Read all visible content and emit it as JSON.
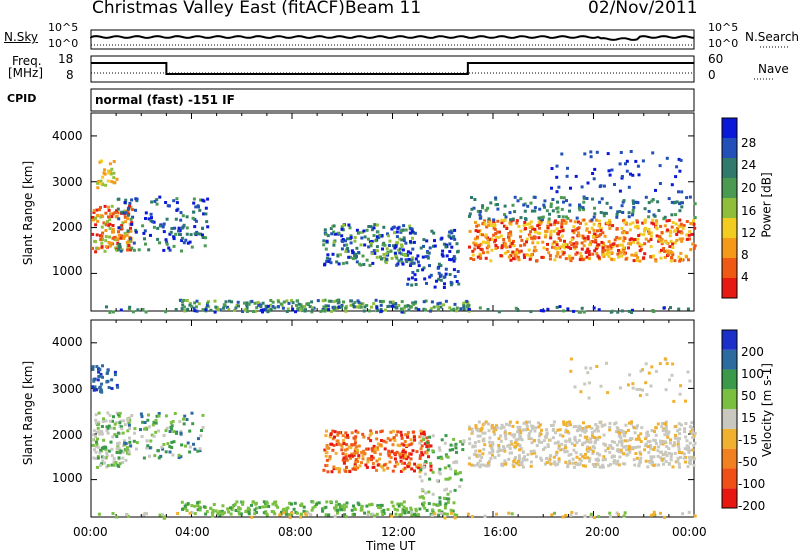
{
  "header": {
    "station": "Christmas Valley East (fitACF)",
    "beam": "Beam 11",
    "date": "02/Nov/2011"
  },
  "top_panels": {
    "noise_left_label": "N.Sky",
    "noise_right_label": "N.Search",
    "noise_ticks": [
      "10^5",
      "10^0"
    ],
    "freq_label_line1": "Freq.",
    "freq_label_line2": "[MHz]",
    "freq_ticks": [
      "18",
      "8"
    ],
    "nave_label": "Nave",
    "nave_ticks": [
      "60",
      "0"
    ],
    "cpid_label": "CPID",
    "cpid_value": "normal (fast) -151 IF"
  },
  "chart_data": [
    {
      "type": "heatmap",
      "name": "power",
      "ylabel": "Slant Range [km]",
      "xlabel": "",
      "y_ticks": [
        "4000",
        "3000",
        "2000",
        "1000"
      ],
      "ylim": [
        180,
        4500
      ],
      "xlim": [
        0,
        24
      ],
      "colorbar": {
        "label": "Power [dB]",
        "ticks": [
          "28",
          "24",
          "20",
          "16",
          "12",
          "8",
          "4"
        ],
        "colors": [
          "#0a18d8",
          "#2250b8",
          "#2f7a6a",
          "#4a9a52",
          "#8fbf3a",
          "#f2cc20",
          "#f59a18",
          "#ee5a14",
          "#e61a10"
        ]
      }
    },
    {
      "type": "heatmap",
      "name": "velocity",
      "ylabel": "Slant Range [km]",
      "xlabel": "Time UT",
      "y_ticks": [
        "4000",
        "3000",
        "2000",
        "1000"
      ],
      "ylim": [
        180,
        4500
      ],
      "xlim": [
        0,
        24
      ],
      "x_ticks": [
        "00:00",
        "04:00",
        "08:00",
        "12:00",
        "16:00",
        "20:00",
        "00:00"
      ],
      "colorbar": {
        "label": "Velocity [m s-1]",
        "ticks": [
          "200",
          "100",
          "50",
          "15",
          "-15",
          "-50",
          "-100",
          "-200"
        ],
        "colors": [
          "#1a30c8",
          "#2c6aa0",
          "#3a9a4a",
          "#7ac040",
          "#c8c8c0",
          "#f0b030",
          "#f08020",
          "#f05018",
          "#e81810"
        ]
      }
    }
  ]
}
